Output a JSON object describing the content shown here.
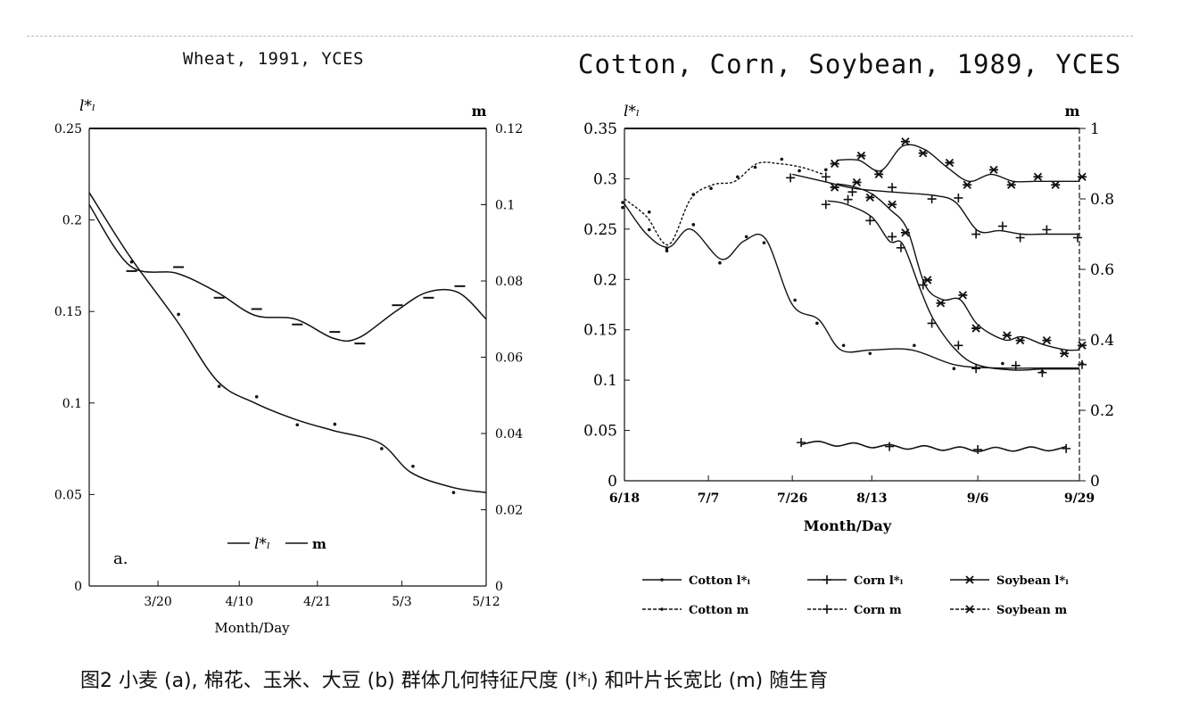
{
  "caption": "图2  小麦 (a), 棉花、玉米、大豆 (b) 群体几何特征尺度 (l*ₗ) 和叶片长宽比 (m) 随生育",
  "colors": {
    "ink": "#111111",
    "paper": "#ffffff"
  },
  "chart_data": [
    {
      "type": "line",
      "title": "Wheat, 1991, YCES",
      "xlabel": "Month/Day",
      "ylabel_left": "l*ₗ",
      "ylabel_right": "m",
      "panel_label": "a.",
      "x_tick_labels": [
        "3/20",
        "4/10",
        "4/21",
        "5/3",
        "5/12"
      ],
      "x_tick_days": [
        -8,
        14,
        40,
        65,
        92,
        119
      ],
      "x_tick_label_days": [
        14,
        40,
        65,
        92,
        119
      ],
      "xlim_days": [
        -8,
        119
      ],
      "left_axis": {
        "lim": [
          0,
          0.25
        ],
        "ticks": [
          "0.25",
          "0.2",
          "0.15",
          "0.1",
          "0.05",
          "0"
        ]
      },
      "right_axis": {
        "lim": [
          0,
          0.12
        ],
        "ticks": [
          "0.12",
          "0.1",
          "0.08",
          "0.06",
          "0.04",
          "0.02",
          "0"
        ]
      },
      "legend": [
        {
          "name": "l*ₗ",
          "axis": "left"
        },
        {
          "name": "m",
          "axis": "right"
        }
      ],
      "series": [
        {
          "name": "l*ₗ",
          "axis": "left",
          "x": [
            -8,
            5,
            20,
            33,
            45,
            58,
            70,
            85,
            95,
            108,
            119
          ],
          "values": [
            0.215,
            0.18,
            0.145,
            0.112,
            0.1,
            0.091,
            0.085,
            0.078,
            0.062,
            0.054,
            0.051
          ]
        },
        {
          "name": "m",
          "axis": "right",
          "x": [
            -8,
            5,
            20,
            33,
            45,
            58,
            70,
            78,
            90,
            100,
            110,
            119
          ],
          "values": [
            0.1,
            0.084,
            0.082,
            0.077,
            0.071,
            0.07,
            0.065,
            0.065,
            0.072,
            0.077,
            0.077,
            0.07
          ]
        }
      ]
    },
    {
      "type": "line",
      "title": "Cotton, Corn, Soybean, 1989, YCES",
      "xlabel": "Month/Day",
      "ylabel_left": "l*ₗ",
      "ylabel_right": "m",
      "x_tick_labels": [
        "6/18",
        "7/7",
        "7/26",
        "8/13",
        "9/6",
        "9/29"
      ],
      "x_tick_days": [
        0,
        19,
        38,
        56,
        80,
        103
      ],
      "xlim_days": [
        0,
        103
      ],
      "left_axis": {
        "lim": [
          0,
          0.35
        ],
        "ticks": [
          "0.35",
          "0.3",
          "0.25",
          "0.2",
          "0.15",
          "0.1",
          "0.05",
          "0"
        ]
      },
      "right_axis": {
        "lim": [
          0,
          1
        ],
        "ticks": [
          "1",
          "0.8",
          "0.6",
          "0.4",
          "0.2",
          "0"
        ]
      },
      "legend": [
        {
          "name": "Cotton l*ₗ"
        },
        {
          "name": "Corn l*ₗ"
        },
        {
          "name": "Soybean l*ₗ"
        },
        {
          "name": "Cotton m"
        },
        {
          "name": "Corn m"
        },
        {
          "name": "Soybean m"
        }
      ],
      "series": [
        {
          "name": "Cotton l*ₗ",
          "axis": "left",
          "marker": "dot",
          "x": [
            0,
            5,
            10,
            15,
            22,
            27,
            32,
            38,
            44,
            49,
            56,
            65,
            75,
            85,
            95,
            103
          ],
          "values": [
            0.275,
            0.245,
            0.232,
            0.25,
            0.22,
            0.238,
            0.24,
            0.175,
            0.16,
            0.13,
            0.13,
            0.13,
            0.115,
            0.112,
            0.112,
            0.112
          ]
        },
        {
          "name": "Corn l*ₗ",
          "axis": "left",
          "marker": "plus",
          "x": [
            46,
            50,
            56,
            60,
            63,
            67,
            70,
            75,
            80,
            88,
            95,
            103
          ],
          "values": [
            0.278,
            0.275,
            0.262,
            0.238,
            0.235,
            0.19,
            0.16,
            0.13,
            0.115,
            0.11,
            0.111,
            0.111
          ]
        },
        {
          "name": "Soybean l*ₗ",
          "axis": "left",
          "marker": "star",
          "x": [
            48,
            52,
            56,
            60,
            64,
            68,
            72,
            76,
            80,
            86,
            90,
            95,
            100,
            103
          ],
          "values": [
            0.295,
            0.292,
            0.285,
            0.27,
            0.25,
            0.195,
            0.18,
            0.18,
            0.155,
            0.14,
            0.143,
            0.135,
            0.13,
            0.13
          ]
        },
        {
          "name": "Cotton m",
          "axis": "right",
          "marker": "dot",
          "x": [
            0,
            5,
            10,
            15,
            20,
            25,
            30,
            35,
            40,
            45
          ],
          "values": [
            0.8,
            0.75,
            0.67,
            0.8,
            0.84,
            0.85,
            0.9,
            0.9,
            0.89,
            0.87
          ]
        },
        {
          "name": "Corn m",
          "axis": "right",
          "marker": "plus",
          "x": [
            38,
            45,
            52,
            60,
            70,
            75,
            80,
            85,
            90,
            95,
            103
          ],
          "values": [
            0.87,
            0.85,
            0.83,
            0.82,
            0.81,
            0.79,
            0.71,
            0.71,
            0.7,
            0.7,
            0.7
          ],
          "extra_marks": {
            "x": [
              40,
              60,
              80,
              100
            ],
            "values": [
              0.038,
              0.034,
              0.031,
              0.032
            ],
            "axis": "left",
            "name": "Corn m (lower band)"
          }
        },
        {
          "name": "Soybean m",
          "axis": "right",
          "marker": "star",
          "x": [
            48,
            53,
            58,
            63,
            68,
            73,
            78,
            83,
            88,
            93,
            98,
            103
          ],
          "values": [
            0.91,
            0.91,
            0.88,
            0.95,
            0.94,
            0.89,
            0.85,
            0.87,
            0.85,
            0.85,
            0.85,
            0.85
          ]
        }
      ]
    }
  ]
}
